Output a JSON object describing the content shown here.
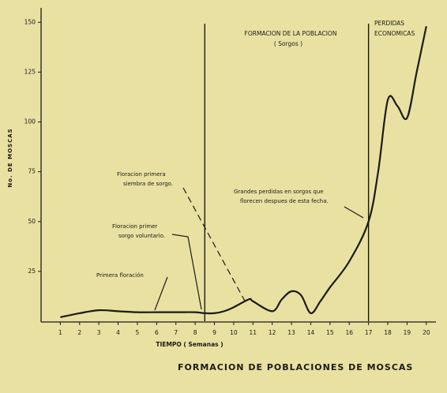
{
  "chart_data": {
    "type": "line",
    "title": "FORMACION DE POBLACIONES DE MOSCAS",
    "x_label": "TIEMPO ( Semanas )",
    "y_label": "No. DE MOSCAS",
    "x": [
      1,
      2,
      3,
      4,
      5,
      6,
      7,
      8,
      8.5,
      9,
      9.5,
      10,
      10.8,
      11,
      12,
      12.5,
      13,
      13.5,
      14,
      14.5,
      15,
      16,
      17,
      17.5,
      18,
      18.5,
      19,
      19.5,
      20
    ],
    "series": [
      {
        "color": "#1c1a14",
        "values": [
          2,
          4,
          5.5,
          5,
          4.5,
          4.5,
          4.5,
          4.5,
          4,
          4,
          5,
          7,
          11,
          10,
          5,
          11,
          15,
          13,
          4,
          10,
          17,
          30,
          50,
          75,
          111,
          108,
          102,
          125,
          148
        ]
      }
    ],
    "xlim": [
      0,
      20.5
    ],
    "ylim": [
      0,
      160
    ],
    "xticks": [
      1,
      2,
      3,
      4,
      5,
      6,
      7,
      8,
      9,
      10,
      11,
      12,
      13,
      14,
      15,
      16,
      17,
      18,
      19,
      20
    ],
    "yticks": [
      25,
      50,
      75,
      100,
      125,
      150
    ],
    "reference_lines": [
      8.5,
      17
    ],
    "regions": [
      [
        "FORMACION DE LA POBLACION",
        "( Sorgos )"
      ],
      [
        "PERDIDAS",
        "ECONOMICAS"
      ]
    ],
    "annotations": [
      [
        "Primera floración"
      ],
      [
        "Floracion primer",
        "sorgo voluntario."
      ],
      [
        "Floracion primera",
        "siembra de sorgo."
      ],
      [
        "Grandes perdidas en sorgos que",
        "florecen despues de esta fecha."
      ]
    ]
  }
}
